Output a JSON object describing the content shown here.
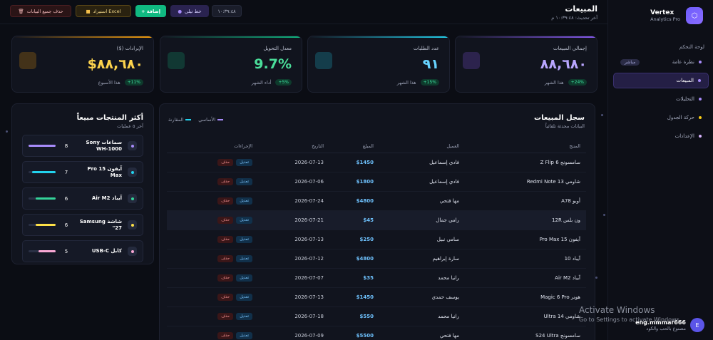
{
  "sidebar": {
    "brand_name": "Vertex",
    "brand_sub": "Analytics Pro",
    "brand_logo": "hexagon-icon",
    "section_label": "لوحة التحكم",
    "items": [
      {
        "label": "نظرة عامة",
        "badge": "مباشر",
        "dot": "#a78bfa"
      },
      {
        "label": "المبيعات",
        "badge": "",
        "dot": "#a78bfa"
      },
      {
        "label": "التحليلات",
        "badge": "",
        "dot": "#a78bfa"
      },
      {
        "label": "حركة الجدول",
        "badge": "",
        "dot": "#facc15"
      },
      {
        "label": "الإعدادات",
        "badge": "",
        "dot": "#d8b4fe"
      }
    ],
    "user": {
      "avatar": "E",
      "name": "eng.mmmar666",
      "role": "مصنوع بالحب والكود"
    }
  },
  "header": {
    "title": "المبيعات",
    "subtitle": "آخر تحديث: ١٠:٣٩:٤٨ م",
    "buttons": {
      "clear": "حذف جميع البيانات",
      "export": "استيراد Excel",
      "add": "+ إضافة",
      "plan": "خط تيلي",
      "time": "١٠:٣٩:٤٨"
    }
  },
  "kpis": [
    {
      "label": "إجمالي المبيعات",
      "value": "٨٨,٦٨٠",
      "badge": "+24%",
      "note": "هذا الشهر",
      "color": "#b9a6ff",
      "line": "#8b5cf6"
    },
    {
      "label": "عدد الطلبات",
      "value": "٩١",
      "badge": "+15%",
      "note": "هذا الشهر",
      "color": "#67d3ff",
      "line": "#22d3ee"
    },
    {
      "label": "معدل التحويل",
      "value": "9.7%",
      "badge": "+5%",
      "note": "أداء الشهر",
      "color": "#4ade9a",
      "line": "#10b981"
    },
    {
      "label": "الإيرادات ($)",
      "value": "$٨٨,٦٨٠",
      "badge": "+11%",
      "note": "هذا الأسبوع",
      "color": "#fcd34d",
      "line": "#f59e0b"
    }
  ],
  "top_products": {
    "title": "أكثر المنتجات مبيعاً",
    "subtitle": "آخر ٥ عمليات",
    "items": [
      {
        "name": "سماعات Sony WH-1000",
        "count": "8",
        "fill": 1.0,
        "color": "#a78bfa"
      },
      {
        "name": "آيفون 15 Pro Max",
        "count": "7",
        "fill": 0.88,
        "color": "#22d3ee"
      },
      {
        "name": "آيباد Air M2",
        "count": "6",
        "fill": 0.75,
        "color": "#34d399"
      },
      {
        "name": "شاشة Samsung 27\"",
        "count": "6",
        "fill": 0.75,
        "color": "#fde047"
      },
      {
        "name": "كابل USB-C",
        "count": "5",
        "fill": 0.62,
        "color": "#f9a8d4"
      }
    ]
  },
  "sales": {
    "title": "سجل المبيعات",
    "subtitle": "البيانات محدثة تلقائياً",
    "legend": [
      {
        "label": "الأساسي",
        "color": "#a78bfa"
      },
      {
        "label": "المقارنة",
        "color": "#22d3ee"
      }
    ],
    "columns": [
      "المنتج",
      "العميل",
      "المبلغ",
      "التاريخ",
      "الإجراءات"
    ],
    "edit_label": "تعديل",
    "delete_label": "حذف",
    "rows": [
      {
        "product": "سامسونج Z Flip 6",
        "customer": "فادي إسماعيل",
        "amount": "$1450",
        "date": "2026-07-13"
      },
      {
        "product": "شاومي Redmi Note 13",
        "customer": "فادي إسماعيل",
        "amount": "$1800",
        "date": "2026-07-06"
      },
      {
        "product": "أوبو A78",
        "customer": "مها فتحي",
        "amount": "$4800",
        "date": "2026-07-24"
      },
      {
        "product": "ون بلس 12R",
        "customer": "رامي جمال",
        "amount": "$45",
        "date": "2026-07-21"
      },
      {
        "product": "آيفون 15 Pro Max",
        "customer": "سامي نبيل",
        "amount": "$250",
        "date": "2026-07-13"
      },
      {
        "product": "آيباد 10",
        "customer": "سارة إبراهيم",
        "amount": "$4800",
        "date": "2026-07-12"
      },
      {
        "product": "آيباد Air M2",
        "customer": "رانيا محمد",
        "amount": "$35",
        "date": "2026-07-07"
      },
      {
        "product": "هونر Magic 6 Pro",
        "customer": "يوسف حمدي",
        "amount": "$1450",
        "date": "2026-07-13"
      },
      {
        "product": "شاومي 14 Ultra",
        "customer": "رانيا محمد",
        "amount": "$550",
        "date": "2026-07-18"
      },
      {
        "product": "سامسونج S24 Ultra",
        "customer": "مها فتحي",
        "amount": "$5500",
        "date": "2026-07-09"
      }
    ]
  },
  "watermark": {
    "line1": "Activate Windows",
    "line2": "Go to Settings to activate Windows."
  }
}
